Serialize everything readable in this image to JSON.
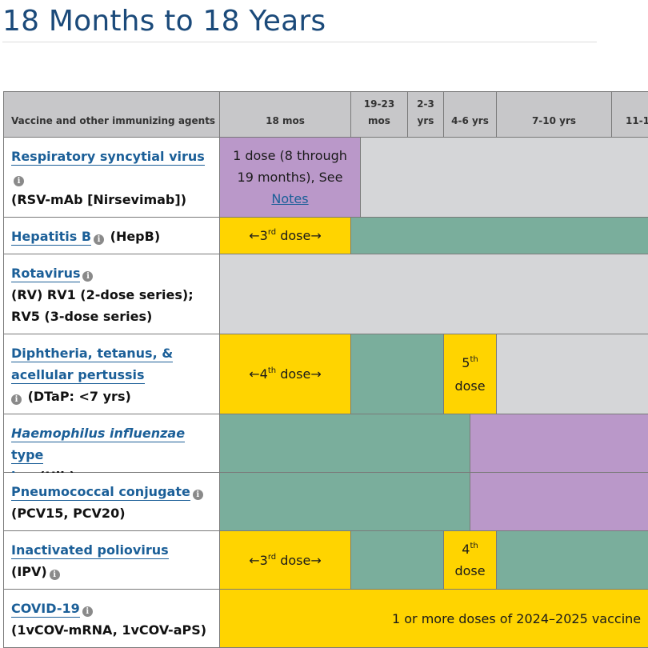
{
  "page": {
    "title": "18 Months to 18 Years"
  },
  "columns": {
    "vaccine": "Vaccine and other immunizing agents",
    "c18mos": "18 mos",
    "c1923_top": "19-23",
    "c1923_bottom": "mos",
    "c23_top": "2-3",
    "c23_bottom": "yrs",
    "c46": "4-6 yrs",
    "c710": "7-10 yrs",
    "c11": "11-1"
  },
  "rows": {
    "rsv": {
      "name": "Respiratory syncytial virus",
      "detail": "(RSV-mAb [Nirsevimab])",
      "dose_text": "1 dose (8 through 19 months), See",
      "notes_link": "Notes"
    },
    "hepb": {
      "name": "Hepatitis B",
      "detail": "(HepB)",
      "dose_num": "3",
      "dose_sup": "rd",
      "dose_word": "dose"
    },
    "rv": {
      "name": "Rotavirus",
      "detail_1": "(RV) RV1 (2-dose series);",
      "detail_2": "RV5 (3-dose series)"
    },
    "dtap": {
      "name_1": "Diphtheria, tetanus, &",
      "name_2": "acellular pertussis",
      "detail": "(DTaP: <7 yrs)",
      "dose_num": "4",
      "dose_sup": "th",
      "dose_word": "dose",
      "dose2_num": "5",
      "dose2_sup": "th",
      "dose2_word": "dose"
    },
    "hib": {
      "name_italic": "Haemophilus influenzae",
      "name_rest": "type",
      "name_2": "b",
      "detail": "(Hib)"
    },
    "pcv": {
      "name": "Pneumococcal conjugate",
      "detail": "(PCV15, PCV20)"
    },
    "ipv": {
      "name": "Inactivated poliovirus",
      "detail": "(IPV)",
      "dose_num": "3",
      "dose_sup": "rd",
      "dose_word": "dose",
      "dose2_num": "4",
      "dose2_sup": "th",
      "dose2_word": "dose"
    },
    "covid": {
      "name": "COVID-19",
      "detail": "(1vCOV-mRNA, 1vCOV-aPS)",
      "dose_text": "1 or more doses of 2024–2025 vaccine"
    }
  },
  "arrows": {
    "left": "←",
    "right": "→"
  },
  "icons": {
    "info": "info-icon"
  },
  "colors": {
    "title": "#1b4a7a",
    "link": "#1b5f98",
    "header_bg": "#c7c7c9",
    "range_recommended": "#ffd400",
    "range_catch_up": "#7aae9c",
    "range_certain_groups": "#ba98c9",
    "not_applicable": "#d5d6d8"
  }
}
